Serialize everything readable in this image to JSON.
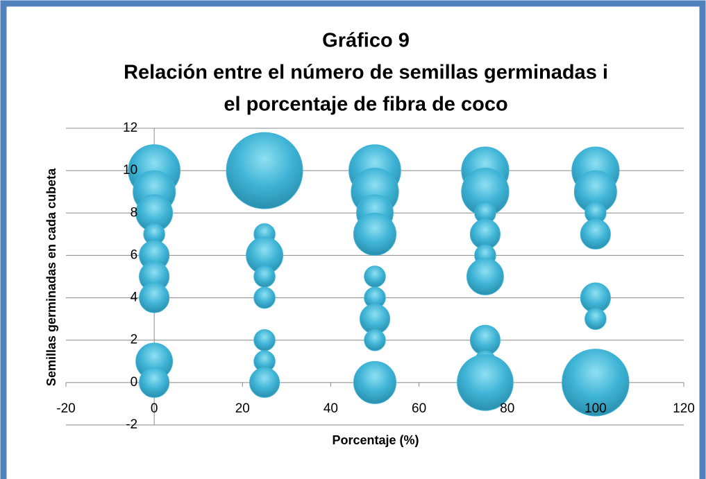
{
  "chart_data": {
    "type": "bubble",
    "title": [
      "Gráfico 9",
      "Relación entre el número de semillas germinadas i",
      "el porcentaje de fibra de coco"
    ],
    "x_label": "Porcentaje (%)",
    "y_label": "Semillas germinadas en cada cubeta",
    "xlim": [
      -20,
      120
    ],
    "xticks": [
      -20,
      0,
      20,
      40,
      60,
      80,
      100,
      120
    ],
    "ylim": [
      -2,
      12
    ],
    "yticks": [
      -2,
      0,
      2,
      4,
      6,
      8,
      10,
      12
    ],
    "grid": true,
    "series": [
      {
        "color": "#3fb4d6",
        "x": [
          0,
          0,
          0,
          0,
          0,
          0,
          0,
          0,
          0,
          25,
          25,
          25,
          25,
          25,
          25,
          25,
          25,
          50,
          50,
          50,
          50,
          50,
          50,
          50,
          50,
          50,
          75,
          75,
          75,
          75,
          75,
          75,
          75,
          75,
          75,
          100,
          100,
          100,
          100,
          100,
          100,
          100
        ],
        "values": [
          10,
          9,
          8,
          7,
          6,
          5,
          4,
          1,
          0,
          10,
          7,
          6,
          5,
          4,
          2,
          1,
          0,
          10,
          9,
          8,
          7,
          5,
          4,
          3,
          2,
          0,
          10,
          9,
          8,
          7,
          6,
          5,
          2,
          1,
          0,
          10,
          9,
          8,
          7,
          4,
          3,
          0
        ],
        "sizes": [
          6,
          4,
          3,
          1,
          2,
          2,
          2,
          3,
          2,
          13,
          1,
          3,
          1,
          1,
          1,
          1,
          2,
          6,
          5,
          3,
          4,
          1,
          1,
          2,
          1,
          4,
          5,
          5,
          1,
          2,
          1,
          3,
          2,
          1,
          7,
          5,
          4,
          1,
          2,
          2,
          1,
          10
        ]
      }
    ]
  }
}
